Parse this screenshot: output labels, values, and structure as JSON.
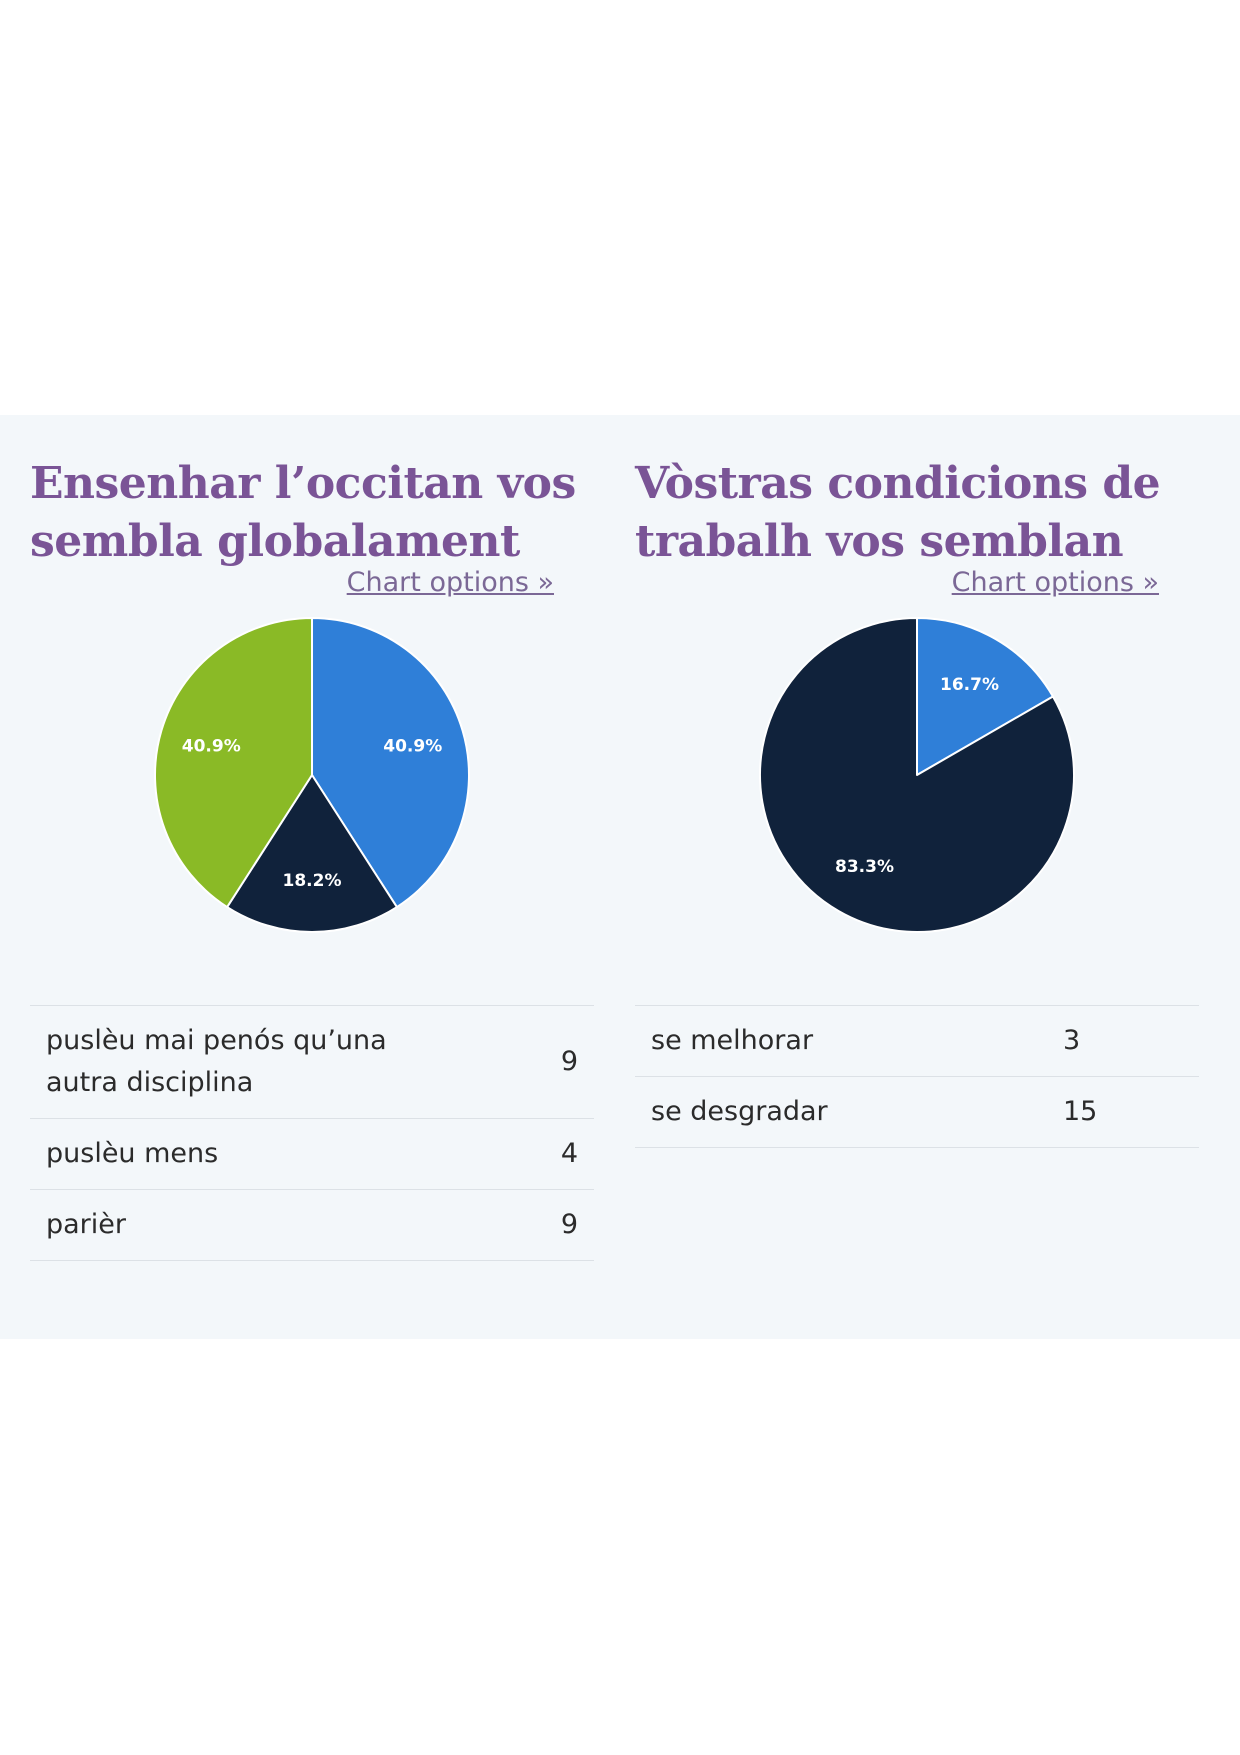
{
  "charts": [
    {
      "title": "Ensenhar l’occitan vos sembla globalament",
      "options_link": "Chart options »",
      "rows": [
        {
          "label": "puslèu mai penós qu’una autra disciplina",
          "value": "9"
        },
        {
          "label": "puslèu mens",
          "value": "4"
        },
        {
          "label": "parièr",
          "value": "9"
        }
      ]
    },
    {
      "title": "Vòstras condicions de trabalh vos semblan",
      "options_link": "Chart options »",
      "rows": [
        {
          "label": "se melhorar",
          "value": "3"
        },
        {
          "label": "se desgradar",
          "value": "15"
        }
      ]
    }
  ],
  "chart_data": [
    {
      "type": "pie",
      "title": "Ensenhar l’occitan vos sembla globalament",
      "categories": [
        "puslèu mai penós qu’una autra disciplina",
        "puslèu mens",
        "parièr"
      ],
      "values": [
        9,
        4,
        9
      ],
      "percent_labels": [
        "40.9%",
        "18.2%",
        "40.9%"
      ],
      "colors": [
        "#2f7fd8",
        "#10223b",
        "#8aba26"
      ]
    },
    {
      "type": "pie",
      "title": "Vòstras condicions de trabalh vos semblan",
      "categories": [
        "se melhorar",
        "se desgradar"
      ],
      "values": [
        3,
        15
      ],
      "percent_labels": [
        "16.7%",
        "83.3%"
      ],
      "colors": [
        "#2f7fd8",
        "#10223b"
      ]
    }
  ]
}
